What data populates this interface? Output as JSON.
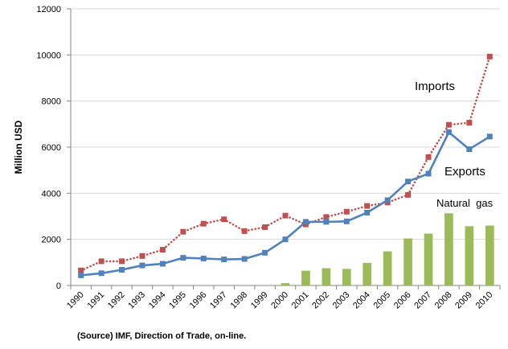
{
  "chart_data": {
    "type": "line",
    "xlabel": "",
    "ylabel": "Million USD",
    "ylim": [
      0,
      12000
    ],
    "yticks": [
      0,
      2000,
      4000,
      6000,
      8000,
      10000,
      12000
    ],
    "grid": "horizontal",
    "legend": "none",
    "categories": [
      "1990",
      "1991",
      "1992",
      "1993",
      "1994",
      "1995",
      "1996",
      "1997",
      "1998",
      "1999",
      "2000",
      "2001",
      "2002",
      "2003",
      "2004",
      "2005",
      "2006",
      "2007",
      "2008",
      "2009",
      "2010"
    ],
    "series": [
      {
        "name": "Imports",
        "kind": "line-dotted",
        "color": "#c0504d",
        "marker": "square",
        "values": [
          650,
          1050,
          1050,
          1280,
          1550,
          2330,
          2680,
          2870,
          2360,
          2530,
          3030,
          2650,
          2970,
          3200,
          3450,
          3600,
          3930,
          5570,
          6970,
          7060,
          9930
        ]
      },
      {
        "name": "Exports",
        "kind": "line-solid",
        "color": "#4f81bd",
        "marker": "square",
        "values": [
          440,
          530,
          680,
          870,
          940,
          1200,
          1170,
          1130,
          1150,
          1420,
          2000,
          2760,
          2760,
          2780,
          3160,
          3700,
          4510,
          4850,
          6650,
          5910,
          6460
        ]
      },
      {
        "name": "Natural gas",
        "kind": "bar",
        "color": "#9bbb59",
        "values": [
          null,
          null,
          null,
          null,
          null,
          null,
          null,
          null,
          null,
          null,
          100,
          640,
          750,
          720,
          980,
          1480,
          2040,
          2250,
          3130,
          2570,
          2600
        ]
      }
    ],
    "annotations": {
      "imports": "Imports",
      "exports": "Exports",
      "natural_gas": "Natural  gas"
    },
    "source": "(Source) IMF, Direction of Trade, on-line."
  }
}
